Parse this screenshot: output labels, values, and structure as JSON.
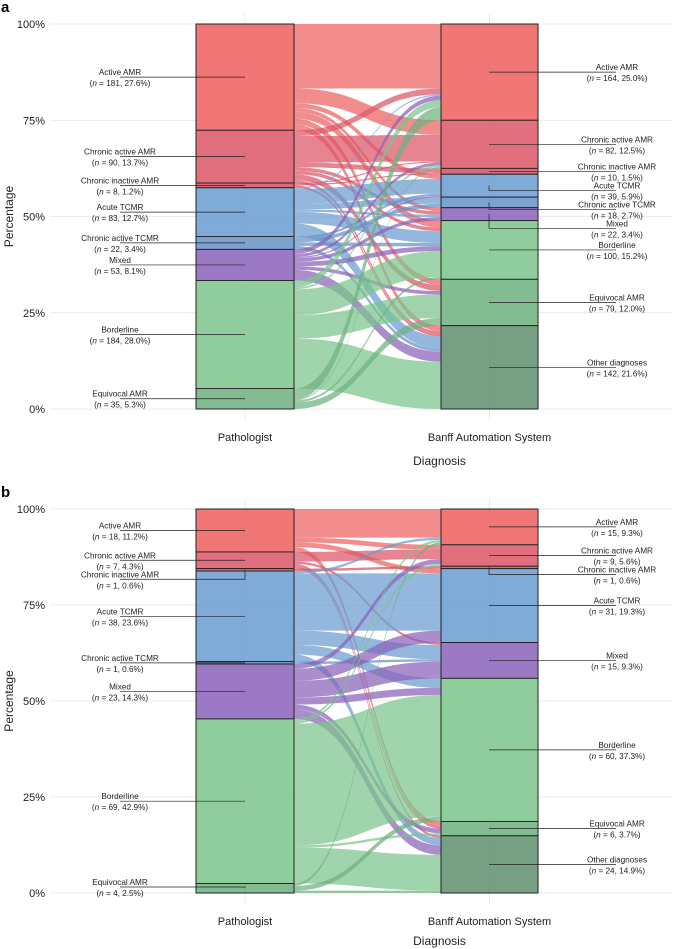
{
  "chart_data": [
    {
      "type": "sankey",
      "panel_label": "a",
      "ylabel": "Percentage",
      "xlabel": "Diagnosis",
      "yticks": [
        "0%",
        "25%",
        "50%",
        "75%",
        "100%"
      ],
      "axes": [
        "Pathologist",
        "Banff Automation System"
      ],
      "left_nodes": [
        {
          "name": "Active AMR",
          "n_text": "n",
          "stats": " = 181, 27.6%)",
          "n": 181,
          "pct": 27.6,
          "color": "#ee5f5f"
        },
        {
          "name": "Chronic active AMR",
          "n_text": "n",
          "stats": " = 90, 13.7%)",
          "n": 90,
          "pct": 13.7,
          "color": "#dc5666"
        },
        {
          "name": "Chronic inactive AMR",
          "n_text": "n",
          "stats": " = 8, 1.2%)",
          "n": 8,
          "pct": 1.2,
          "color": "#d94f62"
        },
        {
          "name": "Acute TCMR",
          "n_text": "n",
          "stats": " = 83, 12.7%)",
          "n": 83,
          "pct": 12.7,
          "color": "#6a9bd0"
        },
        {
          "name": "Chronic active TCMR",
          "n_text": "n",
          "stats": " = 22, 3.4%)",
          "n": 22,
          "pct": 3.4,
          "color": "#6592c8"
        },
        {
          "name": "Mixed",
          "n_text": "n",
          "stats": " = 53, 8.1%)",
          "n": 53,
          "pct": 8.1,
          "color": "#8a61ba"
        },
        {
          "name": "Borderline",
          "n_text": "n",
          "stats": " = 184, 28.0%)",
          "n": 184,
          "pct": 28.0,
          "color": "#7cc48c"
        },
        {
          "name": "Equivocal AMR",
          "n_text": "n",
          "stats": " = 35, 5.3%)",
          "n": 35,
          "pct": 5.3,
          "color": "#6fb07f"
        }
      ],
      "right_nodes": [
        {
          "name": "Active AMR",
          "n_text": "n",
          "stats": " = 164, 25.0%)",
          "n": 164,
          "pct": 25.0,
          "color": "#ee5f5f"
        },
        {
          "name": "Chronic active AMR",
          "n_text": "n",
          "stats": " = 82, 12.5%)",
          "n": 82,
          "pct": 12.5,
          "color": "#dc5666"
        },
        {
          "name": "Chronic inactive AMR",
          "n_text": "n",
          "stats": " = 10, 1.5%)",
          "n": 10,
          "pct": 1.5,
          "color": "#d94f62"
        },
        {
          "name": "Acute TCMR",
          "n_text": "n",
          "stats": " = 39, 5.9%)",
          "n": 39,
          "pct": 5.9,
          "color": "#6a9bd0"
        },
        {
          "name": "Chronic active TCMR",
          "n_text": "n",
          "stats": " = 18, 2.7%)",
          "n": 18,
          "pct": 2.7,
          "color": "#6592c8"
        },
        {
          "name": "Mixed",
          "n_text": "n",
          "stats": " = 22, 3.4%)",
          "n": 22,
          "pct": 3.4,
          "color": "#8a61ba"
        },
        {
          "name": "Borderline",
          "n_text": "n",
          "stats": " = 100, 15.2%)",
          "n": 100,
          "pct": 15.2,
          "color": "#7cc48c"
        },
        {
          "name": "Equivocal AMR",
          "n_text": "n",
          "stats": " = 79, 12.0%)",
          "n": 79,
          "pct": 12.0,
          "color": "#6fb07f"
        },
        {
          "name": "Other diagnoses",
          "n_text": "n",
          "stats": " = 142, 21.6%)",
          "n": 142,
          "pct": 21.6,
          "color": "#5e8e6e"
        }
      ],
      "flows": [
        [
          0,
          0,
          110
        ],
        [
          0,
          1,
          25
        ],
        [
          0,
          3,
          8
        ],
        [
          0,
          5,
          6
        ],
        [
          0,
          6,
          12
        ],
        [
          0,
          7,
          10
        ],
        [
          0,
          8,
          10
        ],
        [
          1,
          0,
          10
        ],
        [
          1,
          1,
          45
        ],
        [
          1,
          2,
          8
        ],
        [
          1,
          5,
          6
        ],
        [
          1,
          6,
          6
        ],
        [
          1,
          7,
          10
        ],
        [
          1,
          8,
          5
        ],
        [
          2,
          2,
          2
        ],
        [
          2,
          1,
          2
        ],
        [
          2,
          8,
          4
        ],
        [
          3,
          0,
          2
        ],
        [
          3,
          3,
          25
        ],
        [
          3,
          4,
          10
        ],
        [
          3,
          5,
          4
        ],
        [
          3,
          6,
          20
        ],
        [
          3,
          8,
          22
        ],
        [
          4,
          4,
          6
        ],
        [
          4,
          3,
          4
        ],
        [
          4,
          6,
          6
        ],
        [
          4,
          8,
          6
        ],
        [
          5,
          0,
          8
        ],
        [
          5,
          1,
          5
        ],
        [
          5,
          3,
          2
        ],
        [
          5,
          5,
          6
        ],
        [
          5,
          6,
          8
        ],
        [
          5,
          7,
          6
        ],
        [
          5,
          8,
          18
        ],
        [
          6,
          0,
          12
        ],
        [
          6,
          1,
          3
        ],
        [
          6,
          3,
          0
        ],
        [
          6,
          5,
          0
        ],
        [
          6,
          6,
          44
        ],
        [
          6,
          7,
          40
        ],
        [
          6,
          8,
          85
        ],
        [
          7,
          0,
          22
        ],
        [
          7,
          1,
          2
        ],
        [
          7,
          6,
          4
        ],
        [
          7,
          7,
          13
        ],
        [
          7,
          8,
          0
        ]
      ]
    },
    {
      "type": "sankey",
      "panel_label": "b",
      "ylabel": "Percentage",
      "xlabel": "Diagnosis",
      "yticks": [
        "0%",
        "25%",
        "50%",
        "75%",
        "100%"
      ],
      "axes": [
        "Pathologist",
        "Banff Automation System"
      ],
      "left_nodes": [
        {
          "name": "Active AMR",
          "n_text": "n",
          "stats": " = 18, 11.2%)",
          "n": 18,
          "pct": 11.2,
          "color": "#ee5f5f"
        },
        {
          "name": "Chronic active AMR",
          "n_text": "n",
          "stats": " = 7, 4.3%)",
          "n": 7,
          "pct": 4.3,
          "color": "#dc5666"
        },
        {
          "name": "Chronic inactive AMR",
          "n_text": "n",
          "stats": " = 1, 0.6%)",
          "n": 1,
          "pct": 0.6,
          "color": "#d94f62"
        },
        {
          "name": "Acute TCMR",
          "n_text": "n",
          "stats": " = 38, 23.6%)",
          "n": 38,
          "pct": 23.6,
          "color": "#6a9bd0"
        },
        {
          "name": "Chronic active TCMR",
          "n_text": "n",
          "stats": " = 1, 0.6%)",
          "n": 1,
          "pct": 0.6,
          "color": "#6592c8"
        },
        {
          "name": "Mixed",
          "n_text": "n",
          "stats": " = 23, 14.3%)",
          "n": 23,
          "pct": 14.3,
          "color": "#8a61ba"
        },
        {
          "name": "Borderline",
          "n_text": "n",
          "stats": " = 69, 42.9%)",
          "n": 69,
          "pct": 42.9,
          "color": "#7cc48c"
        },
        {
          "name": "Equivocal AMR",
          "n_text": "n",
          "stats": " = 4, 2.5%)",
          "n": 4,
          "pct": 2.5,
          "color": "#6fb07f"
        }
      ],
      "right_nodes": [
        {
          "name": "Active AMR",
          "n_text": "n",
          "stats": " = 15, 9.3%)",
          "n": 15,
          "pct": 9.3,
          "color": "#ee5f5f"
        },
        {
          "name": "Chronic active AMR",
          "n_text": "n",
          "stats": " = 9, 5.6%)",
          "n": 9,
          "pct": 5.6,
          "color": "#dc5666"
        },
        {
          "name": "Chronic inactive AMR",
          "n_text": "n",
          "stats": " = 1, 0.6%)",
          "n": 1,
          "pct": 0.6,
          "color": "#d94f62"
        },
        {
          "name": "Acute TCMR",
          "n_text": "n",
          "stats": " = 31, 19.3%)",
          "n": 31,
          "pct": 19.3,
          "color": "#6a9bd0"
        },
        {
          "name": "Mixed",
          "n_text": "n",
          "stats": " = 15, 9.3%)",
          "n": 15,
          "pct": 9.3,
          "color": "#8a61ba"
        },
        {
          "name": "Borderline",
          "n_text": "n",
          "stats": " = 60, 37.3%)",
          "n": 60,
          "pct": 37.3,
          "color": "#7cc48c"
        },
        {
          "name": "Equivocal AMR",
          "n_text": "n",
          "stats": " = 6, 3.7%)",
          "n": 6,
          "pct": 3.7,
          "color": "#6fb07f"
        },
        {
          "name": "Other diagnoses",
          "n_text": "n",
          "stats": " = 24, 14.9%)",
          "n": 24,
          "pct": 14.9,
          "color": "#5e8e6e"
        }
      ],
      "flows": [
        [
          0,
          0,
          12
        ],
        [
          0,
          1,
          2
        ],
        [
          0,
          3,
          2
        ],
        [
          0,
          6,
          2
        ],
        [
          1,
          1,
          4
        ],
        [
          1,
          4,
          1
        ],
        [
          1,
          6,
          1
        ],
        [
          1,
          7,
          1
        ],
        [
          2,
          2,
          1
        ],
        [
          3,
          0,
          1
        ],
        [
          3,
          3,
          24
        ],
        [
          3,
          4,
          6
        ],
        [
          3,
          5,
          4
        ],
        [
          3,
          7,
          3
        ],
        [
          4,
          4,
          1
        ],
        [
          5,
          1,
          2
        ],
        [
          5,
          3,
          5
        ],
        [
          5,
          4,
          7
        ],
        [
          5,
          5,
          3
        ],
        [
          5,
          6,
          2
        ],
        [
          5,
          7,
          4
        ],
        [
          6,
          0,
          1
        ],
        [
          6,
          1,
          1
        ],
        [
          6,
          3,
          0
        ],
        [
          6,
          5,
          51
        ],
        [
          6,
          6,
          1
        ],
        [
          6,
          7,
          15
        ],
        [
          7,
          0,
          1
        ],
        [
          7,
          5,
          2
        ],
        [
          7,
          7,
          1
        ]
      ]
    }
  ]
}
